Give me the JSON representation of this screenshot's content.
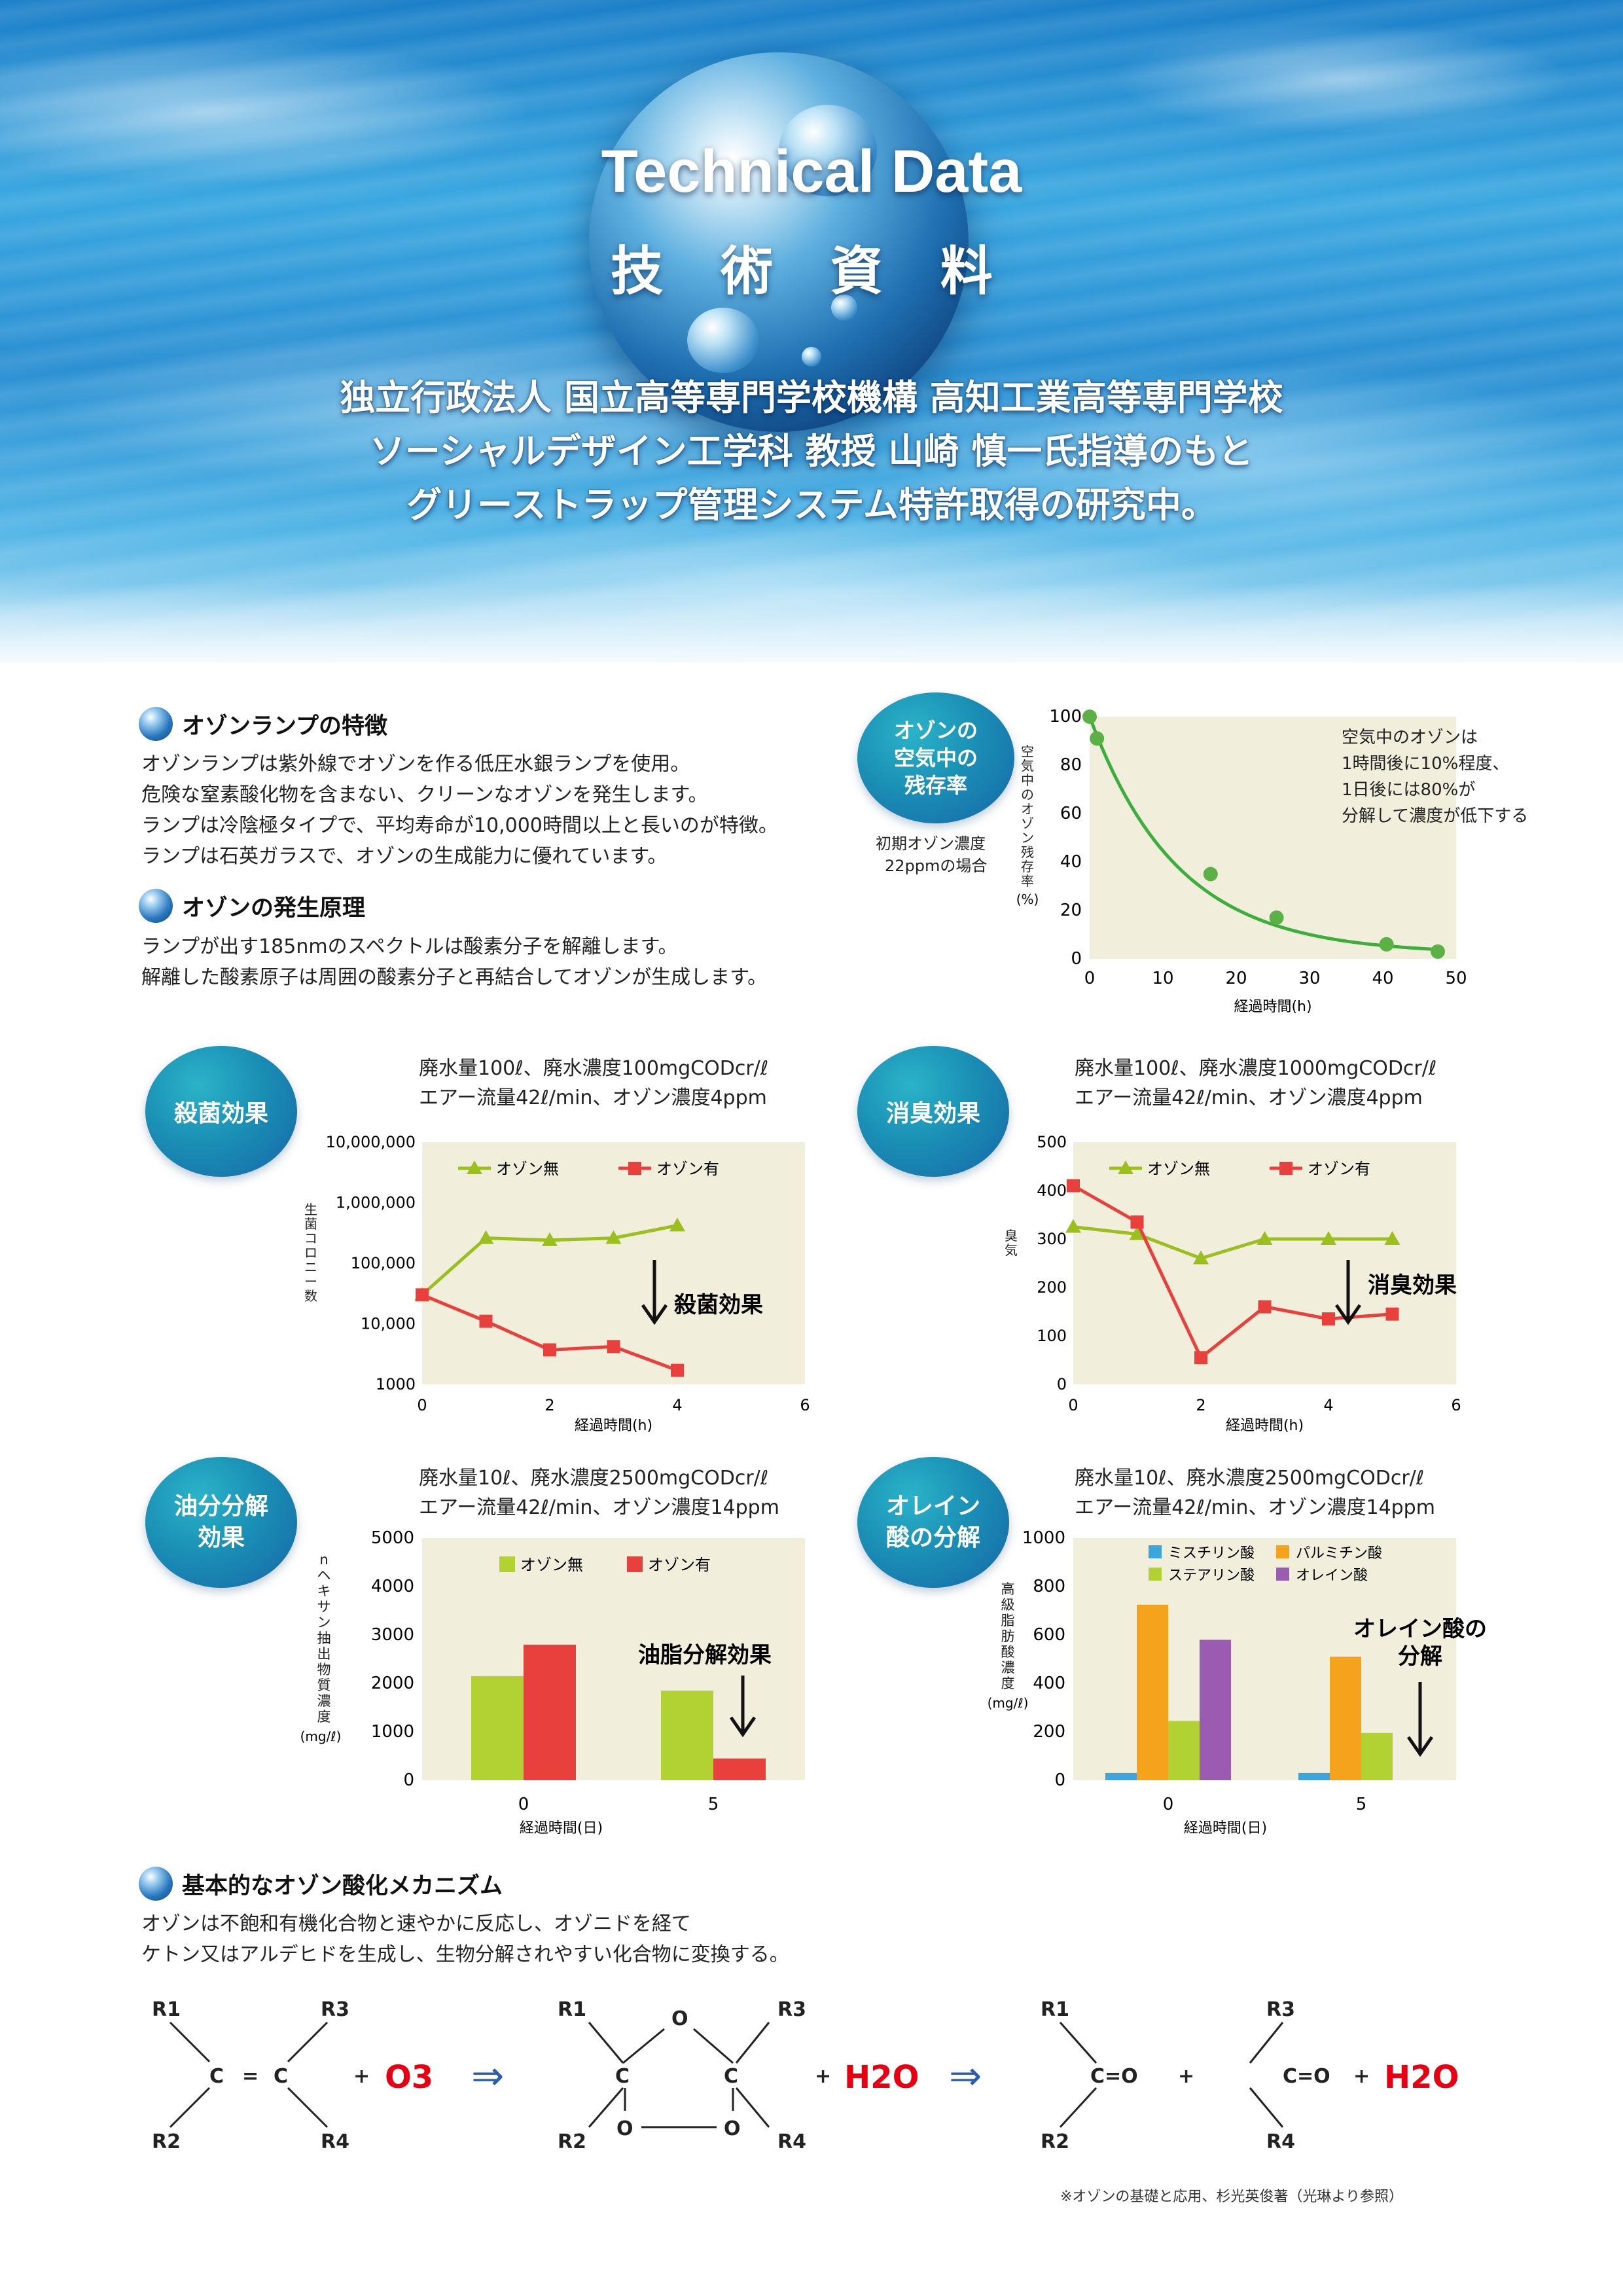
{
  "hero": {
    "title_en": "Technical Data",
    "title_ja": "技 術 資 料",
    "lines": [
      "独立行政法人 国立高等専門学校機構 高知工業高等専門学校",
      "ソーシャルデザイン工学科 教授 山崎 慎一氏指導のもと",
      "グリーストラップ管理システム特許取得の研究中。"
    ]
  },
  "ozone_lamp": {
    "heading": "オゾンランプの特徴",
    "lines": [
      "オゾンランプは紫外線でオゾンを作る低圧水銀ランプを使用。",
      "危険な窒素酸化物を含まない、クリーンなオゾンを発生します。",
      "ランプは冷陰極タイプで、平均寿命が10,000時間以上と長いのが特徴。",
      "ランプは石英ガラスで、オゾンの生成能力に優れています。"
    ]
  },
  "ozone_principle": {
    "heading": "オゾンの発生原理",
    "lines": [
      "ランプが出す185nmのスペクトルは酸素分子を解離します。",
      "解離した酸素原子は周囲の酸素分子と再結合してオゾンが生成します。"
    ]
  },
  "badges": {
    "residual": [
      "オゾンの",
      "空気中の",
      "残存率"
    ],
    "residual_note": [
      "初期オゾン濃度",
      "22ppmの場合"
    ],
    "sterilize": [
      "殺菌効果"
    ],
    "deodorize": [
      "消臭効果"
    ],
    "oil": [
      "油分分解",
      "効果"
    ],
    "oleic": [
      "オレイン",
      "酸の分解"
    ]
  },
  "conditions": {
    "sterilize": [
      "廃水量100ℓ、廃水濃度100mgCODcr/ℓ",
      "エアー流量42ℓ/min、オゾン濃度4ppm"
    ],
    "deodorize": [
      "廃水量100ℓ、廃水濃度1000mgCODcr/ℓ",
      "エアー流量42ℓ/min、オゾン濃度4ppm"
    ],
    "oil": [
      "廃水量10ℓ、廃水濃度2500mgCODcr/ℓ",
      "エアー流量42ℓ/min、オゾン濃度14ppm"
    ],
    "oleic": [
      "廃水量10ℓ、廃水濃度2500mgCODcr/ℓ",
      "エアー流量42ℓ/min、オゾン濃度14ppm"
    ]
  },
  "mechanism": {
    "heading": "基本的なオゾン酸化メカニズム",
    "lines": [
      "オゾンは不飽和有機化合物と速やかに反応し、オゾニドを経て",
      "ケトン又はアルデヒドを生成し、生物分解されやすい化合物に変換する。"
    ],
    "reference": "※オゾンの基礎と応用、杉光英俊著（光琳より参照）",
    "labels": {
      "R1": "R1",
      "R2": "R2",
      "R3": "R3",
      "R4": "R4",
      "C": "C",
      "O": "O",
      "eq": "=",
      "plus": "+",
      "O3": "O3",
      "H2O": "H2O",
      "arrow": "⇒",
      "CO": "C=O"
    }
  },
  "colors": {
    "chart_bg": "#f2eedc",
    "green": "#9bbf1e",
    "red": "#e8403c",
    "fit": "#3cae3c",
    "blue": "#3ba6dc",
    "orange": "#f5a21d",
    "lime": "#b2d234",
    "purple": "#9a5bb0",
    "formula_red": "#e60012",
    "formula_arrow": "#2a5fb0"
  },
  "chart_data": [
    {
      "type": "scatter",
      "ylabel": "空気中のオゾン残存率(%)",
      "xlabel": "経過時間(h)",
      "xlim": [
        0,
        50
      ],
      "ylim": [
        0,
        100
      ],
      "xticks": [
        0,
        10,
        20,
        30,
        40,
        50
      ],
      "yticks": [
        0,
        20,
        40,
        60,
        80,
        100
      ],
      "x": [
        0,
        1,
        16.5,
        25.5,
        40.5,
        47.5
      ],
      "y": [
        100,
        91,
        35,
        17,
        6,
        3
      ],
      "annotation": [
        "空気中のオゾンは",
        "1時間後に10%程度、",
        "1日後には80%が",
        "分解して濃度が低下する"
      ],
      "grid": false
    },
    {
      "type": "line",
      "ylabel": "生菌コロニー数",
      "xlabel": "経過時間(h)",
      "xlim": [
        0,
        6
      ],
      "ylim": [
        1000,
        10000000
      ],
      "yscale": "log",
      "xticks": [
        "0",
        "2",
        "4",
        "6"
      ],
      "yticks": [
        "1000",
        "10,000",
        "100,000",
        "1,000,000",
        "10,000,000"
      ],
      "series": [
        {
          "name": "オゾン無",
          "x": [
            0,
            1,
            2,
            3,
            4
          ],
          "values": [
            30000,
            260000,
            240000,
            260000,
            420000
          ]
        },
        {
          "name": "オゾン有",
          "x": [
            0,
            1,
            2,
            3,
            4
          ],
          "values": [
            30000,
            11000,
            3700,
            4200,
            1700
          ]
        }
      ],
      "annotation": "殺菌効果",
      "legend": "top"
    },
    {
      "type": "line",
      "ylabel": "臭気",
      "xlabel": "経過時間(h)",
      "xlim": [
        0,
        6
      ],
      "ylim": [
        0,
        500
      ],
      "xticks": [
        "0",
        "2",
        "4",
        "6"
      ],
      "yticks": [
        "0",
        "100",
        "200",
        "300",
        "400",
        "500"
      ],
      "series": [
        {
          "name": "オゾン無",
          "x": [
            0,
            1,
            2,
            3,
            4,
            5
          ],
          "values": [
            325,
            310,
            260,
            300,
            300,
            300
          ]
        },
        {
          "name": "オゾン有",
          "x": [
            0,
            1,
            2,
            3,
            4,
            5
          ],
          "values": [
            410,
            335,
            55,
            160,
            135,
            145
          ]
        }
      ],
      "annotation": "消臭効果",
      "legend": "top"
    },
    {
      "type": "bar",
      "ylabel": "nヘキサン抽出物質濃度(mg/ℓ)",
      "xlabel": "経過時間(日)",
      "categories": [
        "0",
        "5"
      ],
      "ylim": [
        0,
        5000
      ],
      "yticks": [
        "0",
        "1000",
        "2000",
        "3000",
        "4000",
        "5000"
      ],
      "series": [
        {
          "name": "オゾン無",
          "values": [
            2150,
            1850
          ]
        },
        {
          "name": "オゾン有",
          "values": [
            2800,
            450
          ]
        }
      ],
      "annotation": "油脂分解効果",
      "legend": "top"
    },
    {
      "type": "bar",
      "ylabel": "高級脂肪酸濃度(mg/ℓ)",
      "xlabel": "経過時間(日)",
      "categories": [
        "0",
        "5"
      ],
      "ylim": [
        0,
        1000
      ],
      "yticks": [
        "0",
        "200",
        "400",
        "600",
        "800",
        "1000"
      ],
      "series": [
        {
          "name": "ミスチリン酸",
          "values": [
            30,
            30
          ]
        },
        {
          "name": "パルミチン酸",
          "values": [
            725,
            510
          ]
        },
        {
          "name": "ステアリン酸",
          "values": [
            245,
            195
          ]
        },
        {
          "name": "オレイン酸",
          "values": [
            580,
            0
          ]
        }
      ],
      "annotation": [
        "オレイン酸の",
        "分解"
      ],
      "legend": "top"
    }
  ]
}
